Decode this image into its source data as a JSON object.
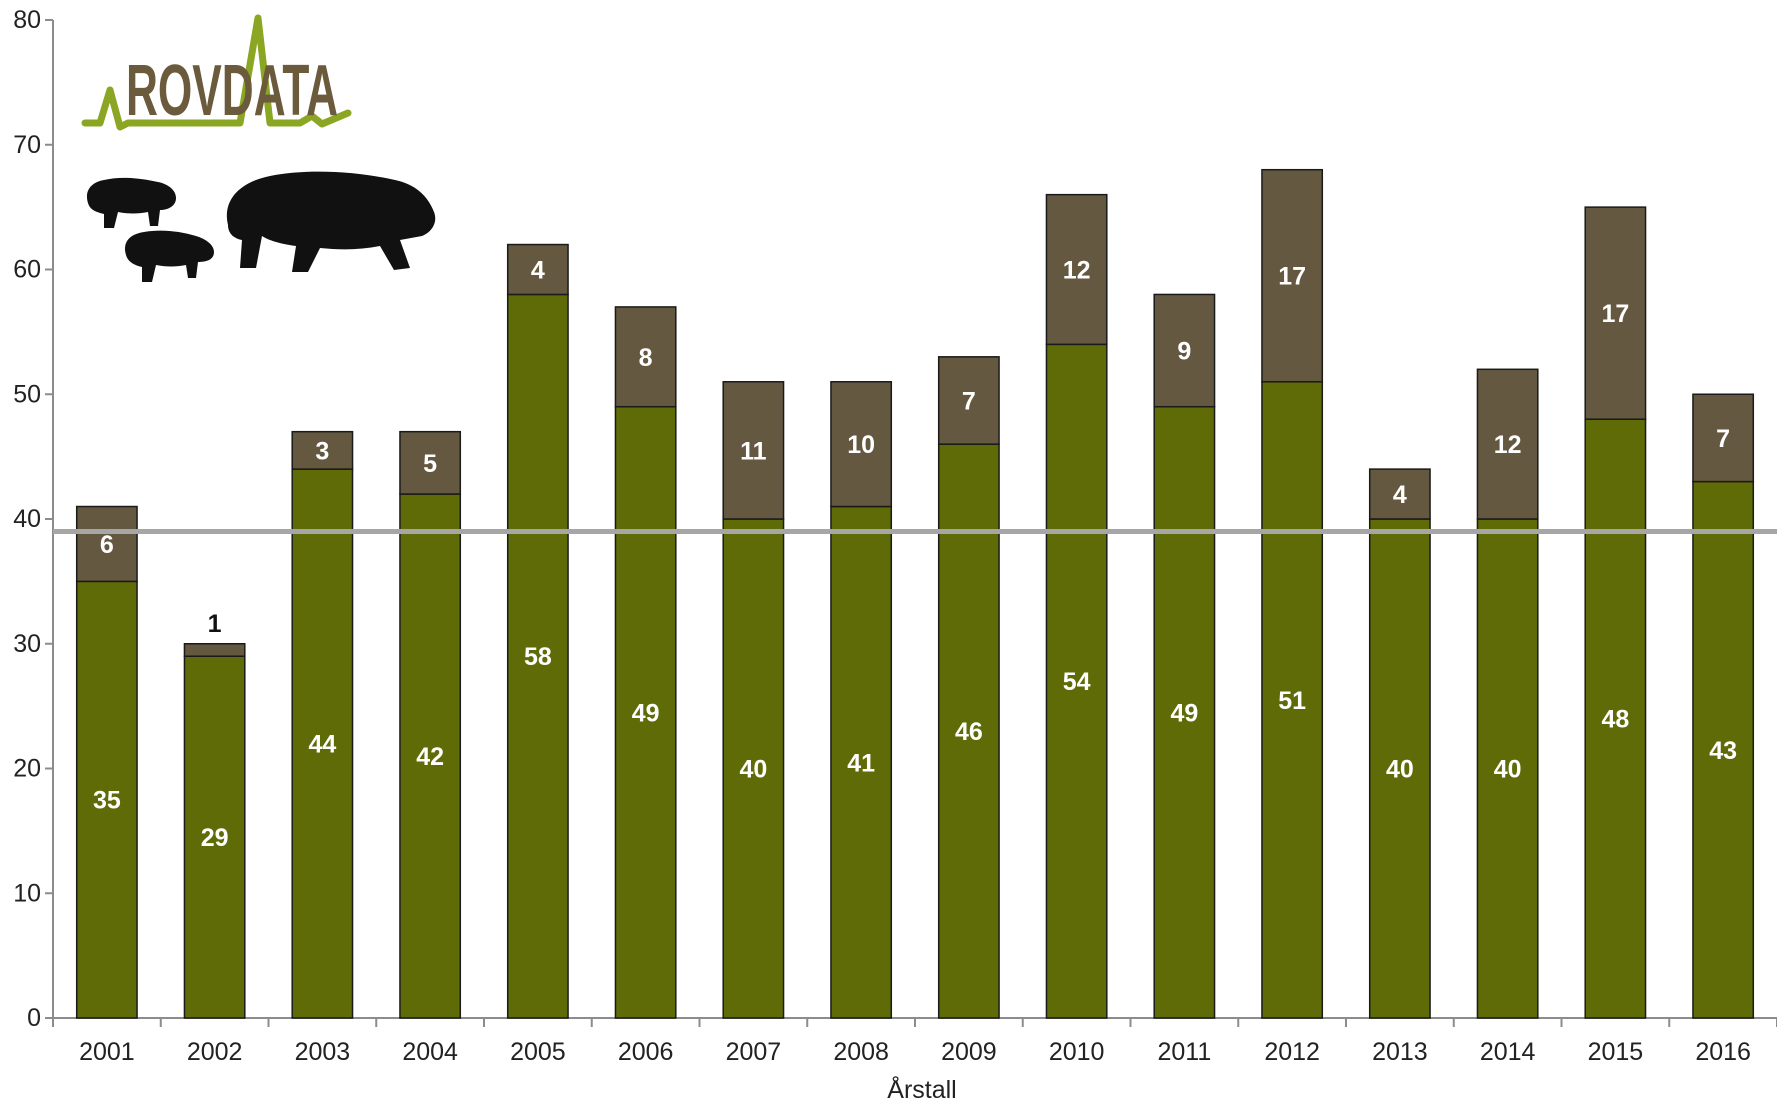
{
  "chart_data": {
    "type": "bar",
    "stacked": true,
    "categories": [
      "2001",
      "2002",
      "2003",
      "2004",
      "2005",
      "2006",
      "2007",
      "2008",
      "2009",
      "2010",
      "2011",
      "2012",
      "2013",
      "2014",
      "2015",
      "2016"
    ],
    "series": [
      {
        "values": [
          35,
          29,
          44,
          42,
          58,
          49,
          40,
          41,
          46,
          54,
          49,
          51,
          40,
          40,
          48,
          43
        ]
      },
      {
        "values": [
          6,
          1,
          3,
          5,
          4,
          8,
          11,
          10,
          7,
          12,
          9,
          17,
          4,
          12,
          17,
          7
        ]
      }
    ],
    "xlabel": "Årstall",
    "ylabel": "",
    "ylim": [
      0,
      80
    ],
    "yticks": [
      0,
      10,
      20,
      30,
      40,
      50,
      60,
      70,
      80
    ],
    "reference_line": 39,
    "grid": false,
    "legend": "none"
  },
  "logo": {
    "text": "ROVDATA"
  },
  "colors": {
    "series_bottom": "#5e6b07",
    "series_top": "#645840",
    "reference_line": "#a6a6a6",
    "logo_text": "#6b5a3c",
    "logo_line": "#8aa622",
    "silhouette": "#111111"
  },
  "icons": [
    "rovdata-logo",
    "wolverine-cub-icon",
    "wolverine-cub-icon",
    "wolverine-adult-icon"
  ]
}
